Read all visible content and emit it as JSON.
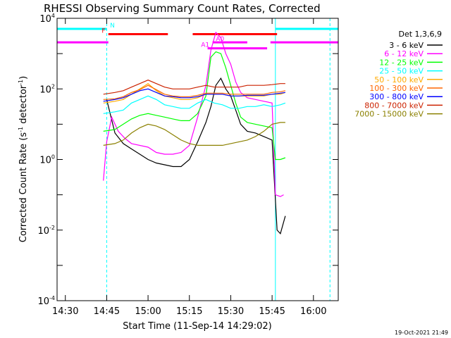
{
  "chart_data": {
    "type": "line",
    "title": "RHESSI Observing Summary Count Rates, Corrected",
    "xlabel": "Start Time (11-Sep-14 14:29:02)",
    "ylabel": "Corrected Count Rate (s",
    "ylabel_sup1": "-1",
    "ylabel_mid": " detector",
    "ylabel_sup2": "-1",
    "ylabel_end": ")",
    "y_scale": "log",
    "xlim": [
      14.45,
      16.15
    ],
    "ylim_exp": [
      -4,
      4
    ],
    "x_ticks": [
      {
        "label": "14:30",
        "value": 14.5
      },
      {
        "label": "14:45",
        "value": 14.75
      },
      {
        "label": "15:00",
        "value": 15.0
      },
      {
        "label": "15:15",
        "value": 15.25
      },
      {
        "label": "15:30",
        "value": 15.5
      },
      {
        "label": "15:45",
        "value": 15.75
      },
      {
        "label": "16:00",
        "value": 16.0
      }
    ],
    "y_ticks": [
      {
        "base": "10",
        "exp": "4",
        "value": 4
      },
      {
        "base": "10",
        "exp": "2",
        "value": 2
      },
      {
        "base": "10",
        "exp": "0",
        "value": 0
      },
      {
        "base": "10",
        "exp": "-2",
        "value": -2
      },
      {
        "base": "10",
        "exp": "-4",
        "value": -4
      }
    ],
    "legend_title": "Det 1,3,6,9",
    "legend_placement": "right",
    "timestamp": "19-Oct-2021 21:49",
    "series": [
      {
        "name": "3 - 6 keV",
        "color": "#000000",
        "points": [
          [
            14.75,
            1.7
          ],
          [
            14.8,
            0.75
          ],
          [
            14.85,
            0.45
          ],
          [
            14.9,
            0.3
          ],
          [
            14.95,
            0.15
          ],
          [
            15.0,
            0.0
          ],
          [
            15.05,
            -0.1
          ],
          [
            15.1,
            -0.15
          ],
          [
            15.15,
            -0.2
          ],
          [
            15.2,
            -0.2
          ],
          [
            15.25,
            0.0
          ],
          [
            15.3,
            0.5
          ],
          [
            15.35,
            1.05
          ],
          [
            15.38,
            1.5
          ],
          [
            15.41,
            2.1
          ],
          [
            15.44,
            2.3
          ],
          [
            15.47,
            2.0
          ],
          [
            15.5,
            1.8
          ],
          [
            15.53,
            1.4
          ],
          [
            15.56,
            1.0
          ],
          [
            15.6,
            0.8
          ],
          [
            15.65,
            0.75
          ],
          [
            15.7,
            0.65
          ],
          [
            15.75,
            0.55
          ],
          [
            15.78,
            -2.0
          ],
          [
            15.8,
            -2.1
          ],
          [
            15.83,
            -1.6
          ]
        ]
      },
      {
        "name": "6 - 12 keV",
        "color": "#ff00ff",
        "points": [
          [
            14.73,
            -0.6
          ],
          [
            14.75,
            0.5
          ],
          [
            14.78,
            1.2
          ],
          [
            14.82,
            0.8
          ],
          [
            14.86,
            0.6
          ],
          [
            14.9,
            0.45
          ],
          [
            15.0,
            0.35
          ],
          [
            15.05,
            0.2
          ],
          [
            15.1,
            0.15
          ],
          [
            15.15,
            0.15
          ],
          [
            15.2,
            0.2
          ],
          [
            15.25,
            0.4
          ],
          [
            15.3,
            1.2
          ],
          [
            15.35,
            2.1
          ],
          [
            15.38,
            3.1
          ],
          [
            15.41,
            3.6
          ],
          [
            15.44,
            3.45
          ],
          [
            15.47,
            3.0
          ],
          [
            15.5,
            2.7
          ],
          [
            15.53,
            2.2
          ],
          [
            15.56,
            1.9
          ],
          [
            15.6,
            1.75
          ],
          [
            15.65,
            1.7
          ],
          [
            15.7,
            1.65
          ],
          [
            15.75,
            1.6
          ],
          [
            15.77,
            -1.0
          ],
          [
            15.8,
            -1.05
          ],
          [
            15.82,
            -1.0
          ]
        ]
      },
      {
        "name": "12 - 25 keV",
        "color": "#00ff00",
        "points": [
          [
            14.73,
            0.8
          ],
          [
            14.8,
            0.85
          ],
          [
            14.85,
            1.0
          ],
          [
            14.9,
            1.15
          ],
          [
            14.95,
            1.25
          ],
          [
            15.0,
            1.3
          ],
          [
            15.05,
            1.25
          ],
          [
            15.1,
            1.2
          ],
          [
            15.15,
            1.15
          ],
          [
            15.2,
            1.1
          ],
          [
            15.25,
            1.1
          ],
          [
            15.3,
            1.3
          ],
          [
            15.35,
            1.8
          ],
          [
            15.38,
            2.9
          ],
          [
            15.41,
            3.05
          ],
          [
            15.44,
            3.0
          ],
          [
            15.47,
            2.6
          ],
          [
            15.5,
            2.1
          ],
          [
            15.53,
            1.6
          ],
          [
            15.56,
            1.2
          ],
          [
            15.6,
            1.05
          ],
          [
            15.65,
            1.0
          ],
          [
            15.7,
            0.95
          ],
          [
            15.75,
            0.9
          ],
          [
            15.77,
            0.0
          ],
          [
            15.8,
            0.0
          ],
          [
            15.83,
            0.05
          ]
        ]
      },
      {
        "name": "25 - 50 keV",
        "color": "#00ffff",
        "points": [
          [
            14.73,
            1.3
          ],
          [
            14.8,
            1.35
          ],
          [
            14.85,
            1.4
          ],
          [
            14.9,
            1.6
          ],
          [
            14.95,
            1.7
          ],
          [
            15.0,
            1.8
          ],
          [
            15.05,
            1.7
          ],
          [
            15.1,
            1.55
          ],
          [
            15.15,
            1.5
          ],
          [
            15.2,
            1.45
          ],
          [
            15.25,
            1.45
          ],
          [
            15.3,
            1.6
          ],
          [
            15.35,
            1.7
          ],
          [
            15.4,
            1.6
          ],
          [
            15.45,
            1.55
          ],
          [
            15.5,
            1.45
          ],
          [
            15.55,
            1.45
          ],
          [
            15.6,
            1.5
          ],
          [
            15.65,
            1.5
          ],
          [
            15.7,
            1.55
          ],
          [
            15.75,
            1.5
          ],
          [
            15.8,
            1.55
          ],
          [
            15.83,
            1.6
          ]
        ]
      },
      {
        "name": "50 - 100 keV",
        "color": "#ffaa00",
        "points": [
          [
            14.73,
            1.6
          ],
          [
            14.8,
            1.65
          ],
          [
            14.85,
            1.7
          ],
          [
            14.9,
            1.85
          ],
          [
            14.95,
            2.0
          ],
          [
            15.0,
            2.15
          ],
          [
            15.05,
            1.95
          ],
          [
            15.1,
            1.8
          ],
          [
            15.15,
            1.75
          ],
          [
            15.2,
            1.7
          ],
          [
            15.25,
            1.7
          ],
          [
            15.3,
            1.75
          ],
          [
            15.35,
            1.85
          ],
          [
            15.4,
            1.85
          ],
          [
            15.45,
            1.85
          ],
          [
            15.5,
            1.8
          ],
          [
            15.55,
            1.8
          ],
          [
            15.6,
            1.8
          ],
          [
            15.65,
            1.8
          ],
          [
            15.7,
            1.8
          ],
          [
            15.75,
            1.85
          ],
          [
            15.8,
            1.85
          ],
          [
            15.83,
            1.9
          ]
        ]
      },
      {
        "name": "100 - 300 keV",
        "color": "#ff6600",
        "points": [
          [
            14.73,
            1.7
          ],
          [
            14.8,
            1.72
          ],
          [
            14.85,
            1.78
          ],
          [
            14.9,
            1.9
          ],
          [
            14.95,
            1.98
          ],
          [
            15.0,
            2.1
          ],
          [
            15.05,
            1.98
          ],
          [
            15.1,
            1.85
          ],
          [
            15.15,
            1.8
          ],
          [
            15.2,
            1.78
          ],
          [
            15.25,
            1.78
          ],
          [
            15.3,
            1.82
          ],
          [
            15.35,
            1.88
          ],
          [
            15.4,
            1.88
          ],
          [
            15.45,
            1.88
          ],
          [
            15.5,
            1.85
          ],
          [
            15.55,
            1.85
          ],
          [
            15.6,
            1.85
          ],
          [
            15.65,
            1.85
          ],
          [
            15.7,
            1.85
          ],
          [
            15.75,
            1.9
          ],
          [
            15.8,
            1.92
          ],
          [
            15.83,
            1.95
          ]
        ]
      },
      {
        "name": "300 - 800 keV",
        "color": "#0000ff",
        "points": [
          [
            14.73,
            1.65
          ],
          [
            14.8,
            1.7
          ],
          [
            14.85,
            1.75
          ],
          [
            14.9,
            1.85
          ],
          [
            14.95,
            1.95
          ],
          [
            15.0,
            2.0
          ],
          [
            15.05,
            1.9
          ],
          [
            15.1,
            1.8
          ],
          [
            15.15,
            1.78
          ],
          [
            15.2,
            1.75
          ],
          [
            15.25,
            1.75
          ],
          [
            15.3,
            1.78
          ],
          [
            15.35,
            1.85
          ],
          [
            15.4,
            1.85
          ],
          [
            15.45,
            1.85
          ],
          [
            15.5,
            1.8
          ],
          [
            15.55,
            1.8
          ],
          [
            15.6,
            1.82
          ],
          [
            15.65,
            1.82
          ],
          [
            15.7,
            1.82
          ],
          [
            15.75,
            1.85
          ],
          [
            15.8,
            1.88
          ],
          [
            15.83,
            1.9
          ]
        ]
      },
      {
        "name": "800 - 7000 keV",
        "color": "#cc2200",
        "points": [
          [
            14.73,
            1.85
          ],
          [
            14.8,
            1.9
          ],
          [
            14.85,
            1.95
          ],
          [
            14.9,
            2.05
          ],
          [
            14.95,
            2.15
          ],
          [
            15.0,
            2.25
          ],
          [
            15.05,
            2.15
          ],
          [
            15.1,
            2.05
          ],
          [
            15.15,
            2.0
          ],
          [
            15.2,
            2.0
          ],
          [
            15.25,
            2.0
          ],
          [
            15.3,
            2.05
          ],
          [
            15.35,
            2.1
          ],
          [
            15.4,
            2.05
          ],
          [
            15.45,
            2.05
          ],
          [
            15.5,
            2.05
          ],
          [
            15.55,
            2.05
          ],
          [
            15.6,
            2.1
          ],
          [
            15.65,
            2.1
          ],
          [
            15.7,
            2.1
          ],
          [
            15.75,
            2.12
          ],
          [
            15.8,
            2.15
          ],
          [
            15.83,
            2.15
          ]
        ]
      },
      {
        "name": "7000 - 15000 keV",
        "color": "#8b8000",
        "points": [
          [
            14.73,
            0.4
          ],
          [
            14.8,
            0.45
          ],
          [
            14.85,
            0.55
          ],
          [
            14.9,
            0.75
          ],
          [
            14.95,
            0.9
          ],
          [
            15.0,
            1.0
          ],
          [
            15.05,
            0.95
          ],
          [
            15.1,
            0.85
          ],
          [
            15.15,
            0.7
          ],
          [
            15.2,
            0.55
          ],
          [
            15.25,
            0.45
          ],
          [
            15.3,
            0.4
          ],
          [
            15.35,
            0.4
          ],
          [
            15.4,
            0.4
          ],
          [
            15.45,
            0.4
          ],
          [
            15.5,
            0.45
          ],
          [
            15.55,
            0.5
          ],
          [
            15.6,
            0.55
          ],
          [
            15.65,
            0.65
          ],
          [
            15.7,
            0.8
          ],
          [
            15.75,
            1.0
          ],
          [
            15.8,
            1.05
          ],
          [
            15.83,
            1.05
          ]
        ]
      }
    ],
    "status_bars": [
      {
        "label": "N",
        "color": "#00ffff",
        "y": 3.7,
        "segments": [
          [
            14.45,
            14.75
          ],
          [
            15.77,
            16.15
          ]
        ],
        "label_x": 14.77
      },
      {
        "label": "F",
        "color": "#ff0000",
        "y": 3.55,
        "segments": [
          [
            14.76,
            15.12
          ],
          [
            15.27,
            15.78
          ]
        ],
        "label_x": 14.72
      },
      {
        "label": "A0",
        "color": "#ff00ff",
        "y": 3.32,
        "segments": [
          [
            14.45,
            14.76
          ],
          [
            15.39,
            15.6
          ],
          [
            15.74,
            16.15
          ]
        ],
        "label_x": 15.41
      },
      {
        "label": "A1",
        "color": "#ff00ff",
        "y": 3.15,
        "segments": [
          [
            15.36,
            15.72
          ]
        ],
        "label_x": 15.32
      }
    ],
    "vertical_lines": [
      {
        "x": 14.45,
        "color": "#00ffff",
        "style": "solid"
      },
      {
        "x": 14.75,
        "color": "#00ffff",
        "style": "dashed"
      },
      {
        "x": 15.77,
        "color": "#00ffff",
        "style": "solid"
      },
      {
        "x": 16.1,
        "color": "#00ffff",
        "style": "dashed"
      }
    ]
  }
}
